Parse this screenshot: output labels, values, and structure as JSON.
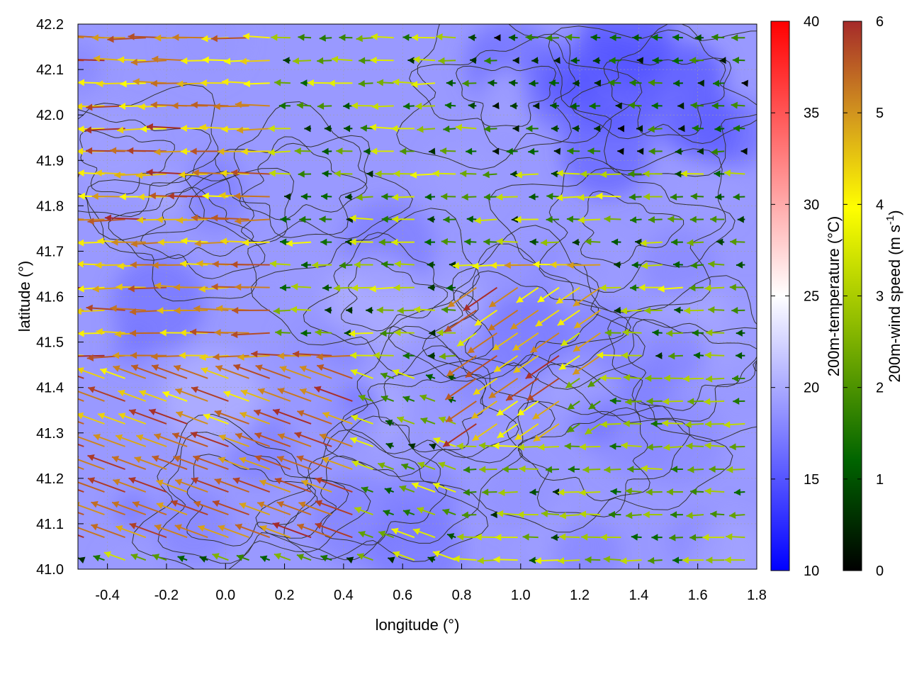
{
  "chart_data": {
    "type": "heatmap",
    "title": "",
    "xlabel": "longitude (°)",
    "ylabel": "latitude (°)",
    "xlim": [
      -0.5,
      1.8
    ],
    "ylim": [
      41.0,
      42.2
    ],
    "x_ticks": [
      "-0.4",
      "-0.2",
      "0.0",
      "0.2",
      "0.4",
      "0.6",
      "0.8",
      "1.0",
      "1.2",
      "1.4",
      "1.6",
      "1.8"
    ],
    "x_tick_values": [
      -0.4,
      -0.2,
      0.0,
      0.2,
      0.4,
      0.6,
      0.8,
      1.0,
      1.2,
      1.4,
      1.6,
      1.8
    ],
    "y_ticks": [
      "41.0",
      "41.1",
      "41.2",
      "41.3",
      "41.4",
      "41.5",
      "41.6",
      "41.7",
      "41.8",
      "41.9",
      "42.0",
      "42.1",
      "42.2"
    ],
    "y_tick_values": [
      41.0,
      41.1,
      41.2,
      41.3,
      41.4,
      41.5,
      41.6,
      41.7,
      41.8,
      41.9,
      42.0,
      42.1,
      42.2
    ],
    "grid": true,
    "background_field": {
      "name": "200m-temperature",
      "label": "200m-temperature (°C)",
      "range": [
        10,
        40
      ],
      "ticks": [
        "10",
        "15",
        "20",
        "25",
        "30",
        "35",
        "40"
      ],
      "tick_values": [
        10,
        15,
        20,
        25,
        30,
        35,
        40
      ],
      "colors": [
        "#0000ff",
        "#ffffff",
        "#ff0000"
      ],
      "typical_value": 19
    },
    "vector_field": {
      "name": "200m-wind",
      "label_main": "200m-wind speed (m s",
      "label_sup": "-1",
      "label_end": ")",
      "range": [
        0,
        6
      ],
      "ticks": [
        "0",
        "1",
        "2",
        "3",
        "4",
        "5",
        "6"
      ],
      "tick_values": [
        0,
        1,
        2,
        3,
        4,
        5,
        6
      ],
      "colors": [
        "#000000",
        "#006400",
        "#8fbc00",
        "#ffff00",
        "#d2961e",
        "#a52a2a"
      ],
      "direction": "westward (easterly wind)",
      "regions": [
        {
          "area": "west, lat 41.3-42.2",
          "speed_range": [
            3,
            6
          ]
        },
        {
          "area": "southwest, lat 41.0-41.5",
          "speed_range": [
            5,
            6
          ]
        },
        {
          "area": "center, lon 0.3-0.9",
          "speed_range": [
            0.5,
            3.5
          ]
        },
        {
          "area": "east, lon 1.3-1.8, lat 41.0-41.4",
          "speed_range": [
            1,
            3
          ]
        },
        {
          "area": "northeast, lat 41.9-42.2",
          "speed_range": [
            0,
            2
          ]
        }
      ]
    },
    "contours": {
      "color": "#333333",
      "description": "terrain elevation contours"
    }
  }
}
